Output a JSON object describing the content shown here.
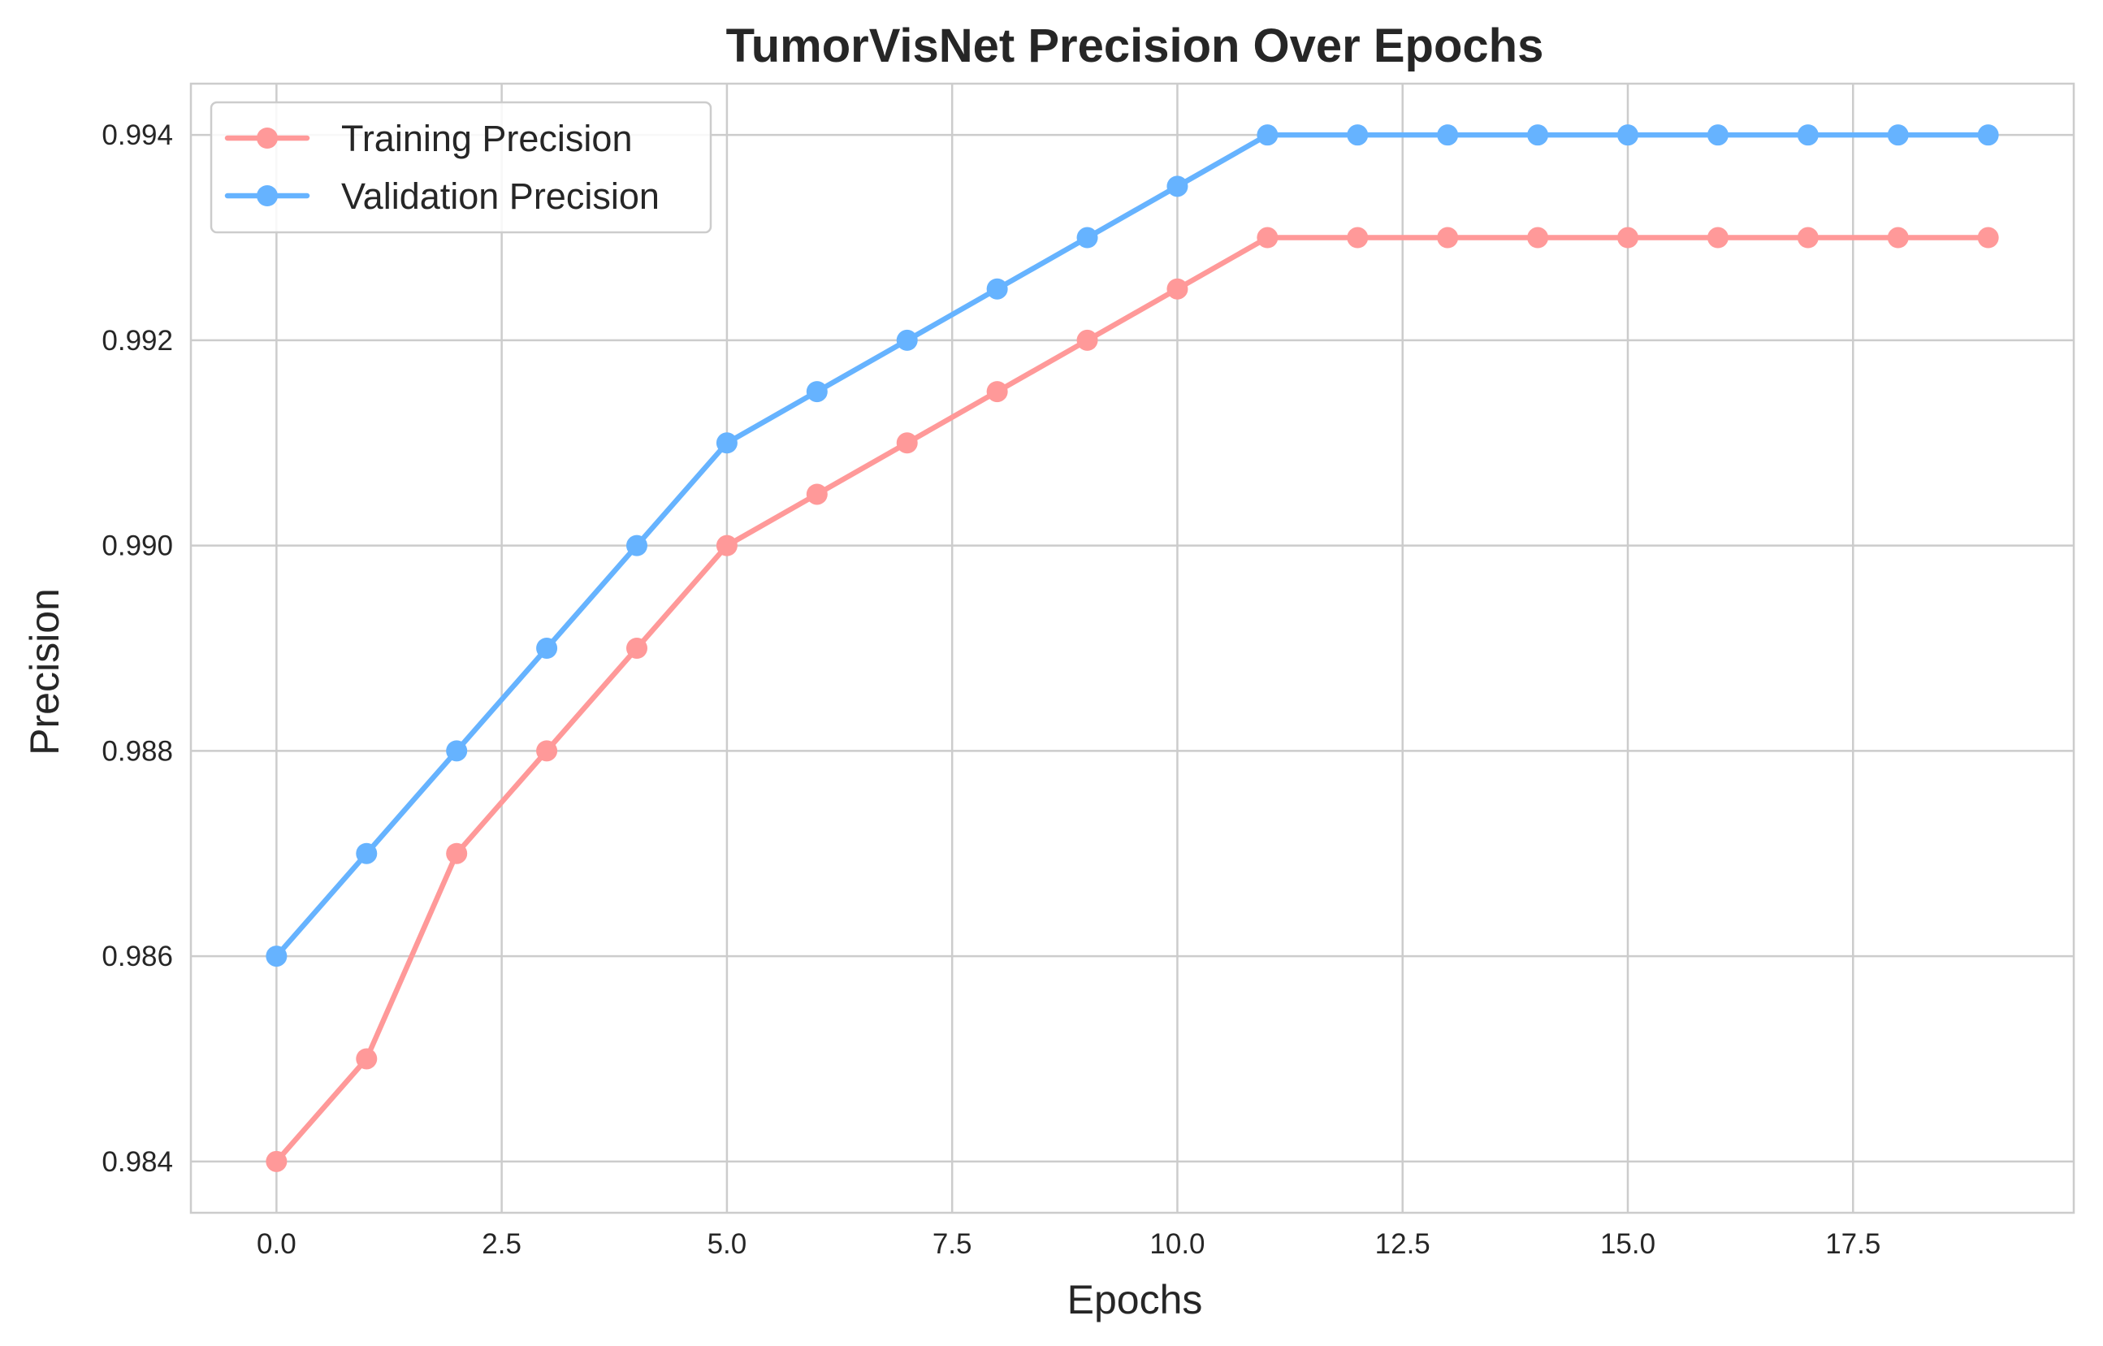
{
  "chart_data": {
    "type": "line",
    "title": "TumorVisNet Precision Over Epochs",
    "xlabel": "Epochs",
    "ylabel": "Precision",
    "xlim": [
      -0.95,
      19.95
    ],
    "ylim": [
      0.9835,
      0.9945
    ],
    "xticks": [
      0.0,
      2.5,
      5.0,
      7.5,
      10.0,
      12.5,
      15.0,
      17.5
    ],
    "xtick_labels": [
      "0.0",
      "2.5",
      "5.0",
      "7.5",
      "10.0",
      "12.5",
      "15.0",
      "17.5"
    ],
    "yticks": [
      0.984,
      0.986,
      0.988,
      0.99,
      0.992,
      0.994
    ],
    "ytick_labels": [
      "0.984",
      "0.986",
      "0.988",
      "0.990",
      "0.992",
      "0.994"
    ],
    "grid": true,
    "legend_position": "top-left",
    "x": [
      0,
      1,
      2,
      3,
      4,
      5,
      6,
      7,
      8,
      9,
      10,
      11,
      12,
      13,
      14,
      15,
      16,
      17,
      18,
      19
    ],
    "series": [
      {
        "name": "Training Precision",
        "color": "#ff9999",
        "marker": "circle",
        "values": [
          0.984,
          0.985,
          0.987,
          0.988,
          0.989,
          0.99,
          0.9905,
          0.991,
          0.9915,
          0.992,
          0.9925,
          0.993,
          0.993,
          0.993,
          0.993,
          0.993,
          0.993,
          0.993,
          0.993,
          0.993
        ]
      },
      {
        "name": "Validation Precision",
        "color": "#66b3ff",
        "marker": "circle",
        "values": [
          0.986,
          0.987,
          0.988,
          0.989,
          0.99,
          0.991,
          0.9915,
          0.992,
          0.9925,
          0.993,
          0.9935,
          0.994,
          0.994,
          0.994,
          0.994,
          0.994,
          0.994,
          0.994,
          0.994,
          0.994
        ]
      }
    ]
  }
}
